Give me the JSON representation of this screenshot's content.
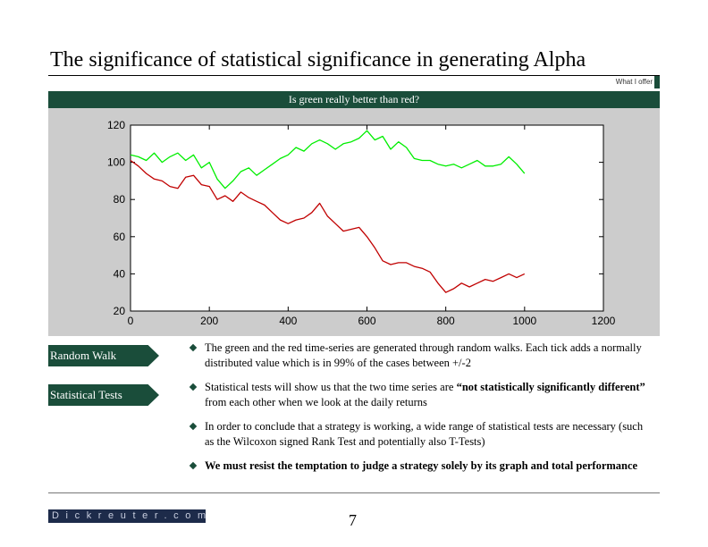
{
  "slide": {
    "title": "The significance of statistical significance in generating Alpha",
    "section_tag": "What I offer",
    "banner": "Is green really better than red?",
    "page_number": "7",
    "logo_text": "Dickreuter.com"
  },
  "labels": [
    {
      "text": "Random Walk"
    },
    {
      "text": "Statistical Tests"
    }
  ],
  "bullets": [
    {
      "text": "The green and the red time-series are generated through random walks. Each tick adds a normally distributed value which is in 99% of the cases between +/-2"
    },
    {
      "pre": "Statistical tests will show us that the two time series are ",
      "bold": "“not statistically significantly different”",
      "post": " from each other when we look at the daily returns"
    },
    {
      "text": "In order to conclude that a strategy is working, a wide range of statistical tests are necessary (such as the Wilcoxon signed Rank Test and potentially also T-Tests)"
    },
    {
      "bold": "We must resist the temptation to judge a strategy solely by its graph and total performance"
    }
  ],
  "colors": {
    "accent": "#1a4d3a",
    "plot_background": "#cccccc",
    "green_series": "#00ee00",
    "red_series": "#c00000"
  },
  "chart_data": {
    "type": "line",
    "xlim": [
      0,
      1200
    ],
    "ylim": [
      20,
      120
    ],
    "xticks": [
      0,
      200,
      400,
      600,
      800,
      1000,
      1200
    ],
    "yticks": [
      20,
      40,
      60,
      80,
      100,
      120
    ],
    "grid": false,
    "series": [
      {
        "color": "#00ee00",
        "x": [
          0,
          20,
          40,
          60,
          80,
          100,
          120,
          140,
          160,
          180,
          200,
          220,
          240,
          260,
          280,
          300,
          320,
          340,
          360,
          380,
          400,
          420,
          440,
          460,
          480,
          500,
          520,
          540,
          560,
          580,
          600,
          620,
          640,
          660,
          680,
          700,
          720,
          740,
          760,
          780,
          800,
          820,
          840,
          860,
          880,
          900,
          920,
          940,
          960,
          980,
          1000
        ],
        "y": [
          104,
          103,
          101,
          105,
          100,
          103,
          105,
          101,
          104,
          97,
          100,
          91,
          86,
          90,
          95,
          97,
          93,
          96,
          99,
          102,
          104,
          108,
          106,
          110,
          112,
          110,
          107,
          110,
          111,
          113,
          117,
          112,
          114,
          107,
          111,
          108,
          102,
          101,
          101,
          99,
          98,
          99,
          97,
          99,
          101,
          98,
          98,
          99,
          103,
          99,
          94
        ]
      },
      {
        "color": "#c00000",
        "x": [
          0,
          20,
          40,
          60,
          80,
          100,
          120,
          140,
          160,
          180,
          200,
          220,
          240,
          260,
          280,
          300,
          320,
          340,
          360,
          380,
          400,
          420,
          440,
          460,
          480,
          500,
          520,
          540,
          560,
          580,
          600,
          620,
          640,
          660,
          680,
          700,
          720,
          740,
          760,
          780,
          800,
          820,
          840,
          860,
          880,
          900,
          920,
          940,
          960,
          980,
          1000
        ],
        "y": [
          101,
          98,
          94,
          91,
          90,
          87,
          86,
          92,
          93,
          88,
          87,
          80,
          82,
          79,
          84,
          81,
          79,
          77,
          73,
          69,
          67,
          69,
          70,
          73,
          78,
          71,
          67,
          63,
          64,
          65,
          60,
          54,
          47,
          45,
          46,
          46,
          44,
          43,
          41,
          35,
          30,
          32,
          35,
          33,
          35,
          37,
          36,
          38,
          40,
          38,
          40
        ]
      }
    ]
  }
}
